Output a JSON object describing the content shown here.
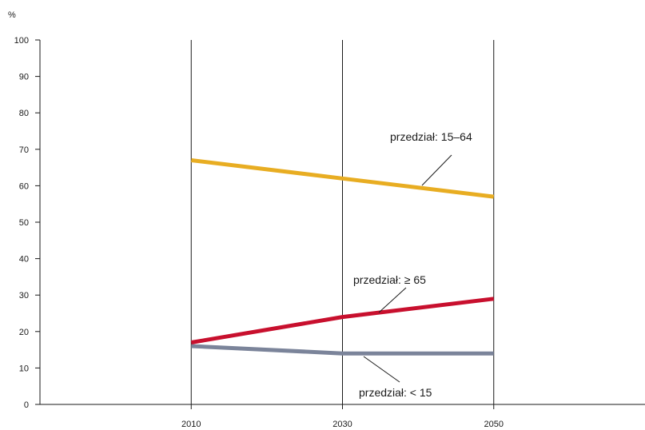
{
  "chart_data": {
    "type": "line",
    "unit_label": "%",
    "x": [
      2010,
      2030,
      2050
    ],
    "x_tick_labels": [
      "2010",
      "2030",
      "2050"
    ],
    "xlim": [
      1990,
      2070
    ],
    "ylim": [
      0,
      100
    ],
    "y_ticks": [
      0,
      10,
      20,
      30,
      40,
      50,
      60,
      70,
      80,
      90,
      100
    ],
    "y_tick_labels": [
      "0",
      "10",
      "20",
      "30",
      "40",
      "50",
      "60",
      "70",
      "80",
      "90",
      "100"
    ],
    "grid": "vertical lines at x ticks",
    "legend": "none",
    "series": [
      {
        "name": "przedział: 15–64",
        "values": [
          67,
          62,
          57
        ],
        "color": "#e8ad22"
      },
      {
        "name": "przedział: ≥ 65",
        "values": [
          17,
          24,
          29
        ],
        "color": "#c8102e"
      },
      {
        "name": "przedział: < 15",
        "values": [
          16,
          14,
          14
        ],
        "color": "#7b849a"
      }
    ],
    "annotations": [
      {
        "text": "przedział: 15–64",
        "series": 0,
        "points_to": [
          2036,
          60.2
        ]
      },
      {
        "text": "przedział: ≥ 65",
        "series": 1,
        "points_to": [
          2034,
          25.2
        ]
      },
      {
        "text": "przedział: < 15",
        "series": 2,
        "points_to": [
          2032,
          14
        ]
      }
    ]
  }
}
